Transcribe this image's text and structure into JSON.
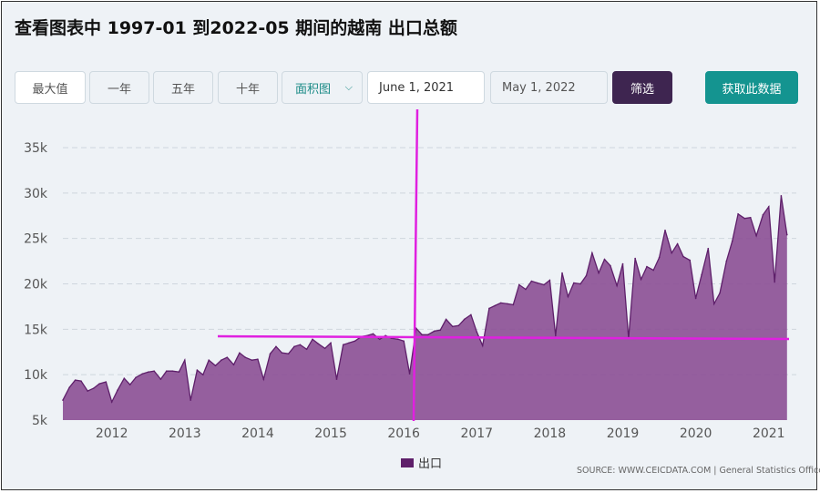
{
  "header": {
    "title": "查看图表中 1997-01 到2022-05 期间的越南 出口总额"
  },
  "controls": {
    "range_buttons": [
      "最大值",
      "一年",
      "五年",
      "十年"
    ],
    "chart_type_select": "面积图",
    "start_date": "June 1, 2021",
    "end_date": "May 1, 2022",
    "filter_label": "筛选",
    "get_data_label": "获取此数据"
  },
  "legend": {
    "label": "出口"
  },
  "source": "SOURCE: WWW.CEICDATA.COM | General Statistics Office",
  "colors": {
    "area_fill": "#8b4f95",
    "area_line": "#5e1f6a",
    "grid": "#cfd6dd",
    "axis_text": "#555555",
    "annotation": "#e020e0",
    "filter_button": "#3e2550",
    "get_data_button": "#149490"
  },
  "chart_data": {
    "type": "area",
    "title": "",
    "xlabel": "",
    "ylabel": "",
    "ylim": [
      5000,
      35000
    ],
    "y_ticks": [
      5000,
      10000,
      15000,
      20000,
      25000,
      30000,
      35000
    ],
    "y_tick_labels": [
      "5k",
      "10k",
      "15k",
      "20k",
      "25k",
      "30k",
      "35k"
    ],
    "x_tick_labels": [
      "2012",
      "2013",
      "2014",
      "2015",
      "2016",
      "2017",
      "2018",
      "2019",
      "2020",
      "2021"
    ],
    "x_tick_years": [
      2012,
      2013,
      2014,
      2015,
      2016,
      2017,
      2018,
      2019,
      2020,
      2021
    ],
    "xlim": [
      2011.33,
      2021.29
    ],
    "series": [
      {
        "name": "出口",
        "x": [
          2011.33,
          2011.42,
          2011.5,
          2011.58,
          2011.67,
          2011.75,
          2011.83,
          2011.92,
          2012.0,
          2012.08,
          2012.17,
          2012.25,
          2012.33,
          2012.42,
          2012.5,
          2012.58,
          2012.67,
          2012.75,
          2012.83,
          2012.92,
          2013.0,
          2013.08,
          2013.17,
          2013.25,
          2013.33,
          2013.42,
          2013.5,
          2013.58,
          2013.67,
          2013.75,
          2013.83,
          2013.92,
          2014.0,
          2014.08,
          2014.17,
          2014.25,
          2014.33,
          2014.42,
          2014.5,
          2014.58,
          2014.67,
          2014.75,
          2014.83,
          2014.92,
          2015.0,
          2015.08,
          2015.17,
          2015.25,
          2015.33,
          2015.42,
          2015.5,
          2015.58,
          2015.67,
          2015.75,
          2015.83,
          2015.92,
          2016.0,
          2016.08,
          2016.17,
          2016.25,
          2016.33,
          2016.42,
          2016.5,
          2016.58,
          2016.67,
          2016.75,
          2016.83,
          2016.92,
          2017.0,
          2017.08,
          2017.17,
          2017.25,
          2017.33,
          2017.42,
          2017.5,
          2017.58,
          2017.67,
          2017.75,
          2017.83,
          2017.92,
          2018.0,
          2018.08,
          2018.17,
          2018.25,
          2018.33,
          2018.42,
          2018.5,
          2018.58,
          2018.67,
          2018.75,
          2018.83,
          2018.92,
          2019.0,
          2019.08,
          2019.17,
          2019.25,
          2019.33,
          2019.42,
          2019.5,
          2019.58,
          2019.67,
          2019.75,
          2019.83,
          2019.92,
          2020.0,
          2020.08,
          2020.17,
          2020.25,
          2020.33,
          2020.42,
          2020.5,
          2020.58,
          2020.67,
          2020.75,
          2020.83,
          2020.92,
          2021.0,
          2021.08,
          2021.17,
          2021.25
        ],
        "values": [
          7200,
          8600,
          9400,
          9300,
          8200,
          8500,
          9000,
          9200,
          7000,
          8300,
          9600,
          8900,
          9700,
          10100,
          10300,
          10400,
          9500,
          10400,
          10400,
          10300,
          11600,
          7200,
          10500,
          10000,
          11600,
          11000,
          11600,
          11900,
          11100,
          12400,
          11900,
          11600,
          11700,
          9500,
          12300,
          13100,
          12400,
          12300,
          13100,
          13300,
          12800,
          13900,
          13400,
          12900,
          13500,
          9500,
          13300,
          13500,
          13700,
          14200,
          14300,
          14500,
          13900,
          14300,
          14000,
          13900,
          13700,
          10100,
          15100,
          14400,
          14400,
          14800,
          14900,
          16100,
          15300,
          15400,
          16100,
          16600,
          14700,
          13200,
          17300,
          17600,
          17900,
          17800,
          17700,
          19900,
          19400,
          20300,
          20100,
          19900,
          20400,
          14300,
          21200,
          18600,
          20100,
          20000,
          20900,
          23400,
          21200,
          22700,
          22000,
          19800,
          22200,
          14000,
          22800,
          20500,
          21900,
          21500,
          22900,
          25900,
          23400,
          24400,
          23000,
          22600,
          18400,
          21000,
          23900,
          17800,
          19000,
          22500,
          24700,
          27700,
          27200,
          27300,
          25300,
          27600,
          28500,
          20200,
          29700,
          25400
        ]
      }
    ]
  }
}
